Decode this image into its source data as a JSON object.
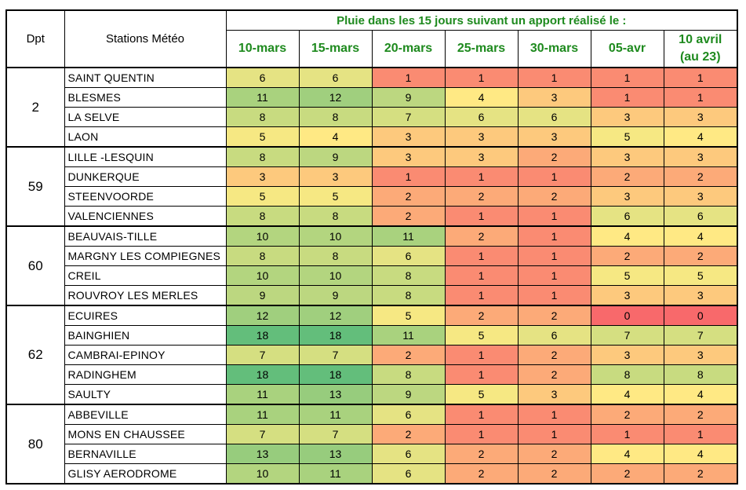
{
  "header": {
    "dpt_label": "Dpt",
    "stations_label": "Stations Météo",
    "title": "Pluie dans les 15 jours suivant un apport réalisé le :",
    "dates": [
      "10-mars",
      "15-mars",
      "20-mars",
      "25-mars",
      "30-mars",
      "05-avr",
      "10 avril"
    ],
    "last_date_note": "(au 23)"
  },
  "colors": {
    "title_green": "#1e8a1e",
    "scale": {
      "0": "#f8696b",
      "1": "#fa8b72",
      "2": "#fcaa78",
      "3": "#fdc97d",
      "4": "#ffe984",
      "5": "#f6e883",
      "6": "#e5e383",
      "7": "#d5df81",
      "8": "#c8db80",
      "9": "#bcd780",
      "10": "#b3d57f",
      "11": "#a9d27e",
      "12": "#a0cf7e",
      "13": "#97cc7d",
      "18": "#63be7b"
    }
  },
  "groups": [
    {
      "dpt": "2",
      "rows": [
        {
          "station": "SAINT QUENTIN",
          "values": [
            6,
            6,
            1,
            1,
            1,
            1,
            1
          ]
        },
        {
          "station": "BLESMES",
          "values": [
            11,
            12,
            9,
            4,
            3,
            1,
            1
          ]
        },
        {
          "station": "LA SELVE",
          "values": [
            8,
            8,
            7,
            6,
            6,
            3,
            3
          ]
        },
        {
          "station": "LAON",
          "values": [
            5,
            4,
            3,
            3,
            3,
            5,
            4
          ]
        }
      ]
    },
    {
      "dpt": "59",
      "rows": [
        {
          "station": "LILLE -LESQUIN",
          "values": [
            8,
            9,
            3,
            3,
            2,
            3,
            3
          ]
        },
        {
          "station": "DUNKERQUE",
          "values": [
            3,
            3,
            1,
            1,
            1,
            2,
            2
          ]
        },
        {
          "station": "STEENVOORDE",
          "values": [
            5,
            5,
            2,
            2,
            2,
            3,
            3
          ]
        },
        {
          "station": "VALENCIENNES",
          "values": [
            8,
            8,
            2,
            1,
            1,
            6,
            6
          ]
        }
      ]
    },
    {
      "dpt": "60",
      "rows": [
        {
          "station": "BEAUVAIS-TILLE",
          "values": [
            10,
            10,
            11,
            2,
            1,
            4,
            4
          ]
        },
        {
          "station": "MARGNY LES COMPIEGNES",
          "values": [
            8,
            8,
            6,
            1,
            1,
            2,
            2
          ]
        },
        {
          "station": "CREIL",
          "values": [
            10,
            10,
            8,
            1,
            1,
            5,
            5
          ]
        },
        {
          "station": "ROUVROY LES MERLES",
          "values": [
            9,
            9,
            8,
            1,
            1,
            3,
            3
          ]
        }
      ]
    },
    {
      "dpt": "62",
      "rows": [
        {
          "station": "ECUIRES",
          "values": [
            12,
            12,
            5,
            2,
            2,
            0,
            0
          ]
        },
        {
          "station": "BAINGHIEN",
          "values": [
            18,
            18,
            11,
            5,
            6,
            7,
            7
          ]
        },
        {
          "station": "CAMBRAI-EPINOY",
          "values": [
            7,
            7,
            2,
            1,
            2,
            3,
            3
          ]
        },
        {
          "station": "RADINGHEM",
          "values": [
            18,
            18,
            8,
            1,
            2,
            8,
            8
          ]
        },
        {
          "station": "SAULTY",
          "values": [
            11,
            13,
            9,
            5,
            3,
            4,
            4
          ]
        }
      ]
    },
    {
      "dpt": "80",
      "rows": [
        {
          "station": "ABBEVILLE",
          "values": [
            11,
            11,
            6,
            1,
            1,
            2,
            2
          ]
        },
        {
          "station": "MONS EN CHAUSSEE",
          "values": [
            7,
            7,
            2,
            1,
            1,
            1,
            1
          ]
        },
        {
          "station": "BERNAVILLE",
          "values": [
            13,
            13,
            6,
            2,
            2,
            4,
            4
          ]
        },
        {
          "station": "GLISY AERODROME",
          "values": [
            10,
            11,
            6,
            2,
            2,
            2,
            2
          ]
        }
      ]
    }
  ]
}
